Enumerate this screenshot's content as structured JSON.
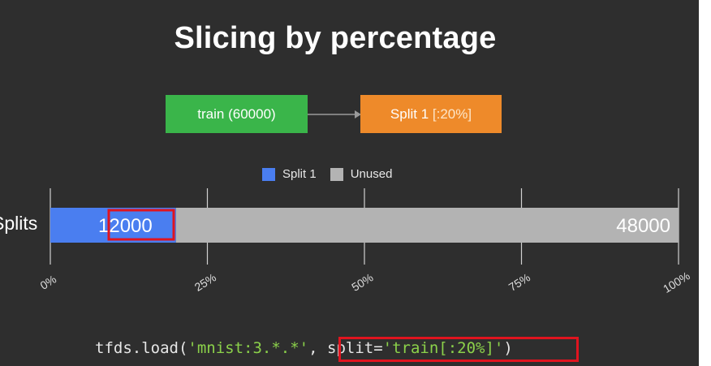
{
  "slide": {
    "title": "Slicing by percentage",
    "source_box": "train (60000)",
    "split_box_prefix": "Split 1 ",
    "split_box_slice": "[:20%]",
    "legend": [
      {
        "label": "Split 1",
        "color": "#4a7ef0"
      },
      {
        "label": "Unused",
        "color": "#b3b3b3"
      }
    ],
    "row_label": "Splits"
  },
  "chart_data": {
    "type": "bar",
    "orientation": "horizontal-stacked",
    "categories": [
      "Splits"
    ],
    "series": [
      {
        "name": "Split 1",
        "values": [
          20
        ],
        "count_label": "12000",
        "color": "#4a7ef0"
      },
      {
        "name": "Unused",
        "values": [
          80
        ],
        "count_label": "48000",
        "color": "#b3b3b3"
      }
    ],
    "xlim": [
      0,
      100
    ],
    "xticks": [
      {
        "value": 0,
        "label": "0%"
      },
      {
        "value": 25,
        "label": "25%"
      },
      {
        "value": 50,
        "label": "50%"
      },
      {
        "value": 75,
        "label": "75%"
      },
      {
        "value": 100,
        "label": "100%"
      }
    ],
    "grid": true,
    "legend_position": "top-center",
    "highlighted_label": "12000"
  },
  "code": {
    "prefix": "tfds.load(",
    "dataset": "'mnist:3.*.*'",
    "sep": ", ",
    "kw": "split=",
    "split_value": "'train[:20%]'",
    "suffix": ")"
  }
}
